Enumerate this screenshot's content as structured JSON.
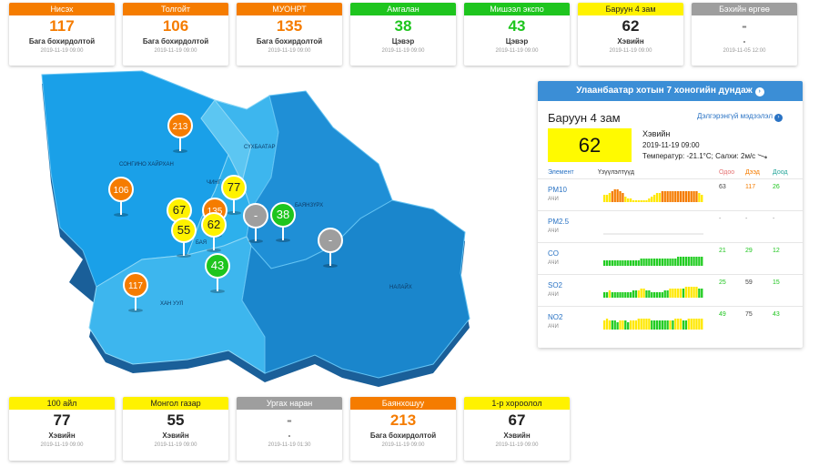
{
  "top_cards": [
    {
      "name": "Нисэх",
      "value": "117",
      "level": "Бага бохирдолтой",
      "time": "2019-11-19 09:00",
      "color": "#f57c00",
      "vcolor": "#f57c00"
    },
    {
      "name": "Толгойт",
      "value": "106",
      "level": "Бага бохирдолтой",
      "time": "2019-11-19 09:00",
      "color": "#f57c00",
      "vcolor": "#f57c00"
    },
    {
      "name": "МУОНРТ",
      "value": "135",
      "level": "Бага бохирдолтой",
      "time": "2019-11-19 09:00",
      "color": "#f57c00",
      "vcolor": "#f57c00"
    },
    {
      "name": "Амгалан",
      "value": "38",
      "level": "Цэвэр",
      "time": "2019-11-19 09:00",
      "color": "#1ec51e",
      "vcolor": "#1ec51e"
    },
    {
      "name": "Мишээл экспо",
      "value": "43",
      "level": "Цэвэр",
      "time": "2019-11-19 09:00",
      "color": "#1ec51e",
      "vcolor": "#1ec51e"
    },
    {
      "name": "Баруун 4 зам",
      "value": "62",
      "level": "Хэвийн",
      "time": "2019-11-19 09:00",
      "color": "#fff200",
      "vcolor": "#222222",
      "dark": true
    },
    {
      "name": "Бэхийн өргөө",
      "value": "-",
      "level": "-",
      "time": "2019-11-05 12:00",
      "color": "#9e9e9e",
      "vcolor": "#888888"
    }
  ],
  "bottom_cards": [
    {
      "name": "100 айл",
      "value": "77",
      "level": "Хэвийн",
      "time": "2019-11-19 09:00",
      "color": "#fff200",
      "vcolor": "#222222",
      "dark": true
    },
    {
      "name": "Монгол газар",
      "value": "55",
      "level": "Хэвийн",
      "time": "2019-11-19 09:00",
      "color": "#fff200",
      "vcolor": "#222222",
      "dark": true
    },
    {
      "name": "Ургах наран",
      "value": "-",
      "level": "-",
      "time": "2019-11-19 01:30",
      "color": "#9e9e9e",
      "vcolor": "#888888"
    },
    {
      "name": "Баянхошуу",
      "value": "213",
      "level": "Бага бохирдолтой",
      "time": "2019-11-19 09:00",
      "color": "#f57c00",
      "vcolor": "#f57c00"
    },
    {
      "name": "1-р хороолол",
      "value": "67",
      "level": "Хэвийн",
      "time": "2019-11-19 09:00",
      "color": "#fff200",
      "vcolor": "#222222",
      "dark": true
    }
  ],
  "districts": [
    {
      "id": "songino",
      "name": "СОНГИНО ХАЙРХАН"
    },
    {
      "id": "sukhbaatar",
      "name": "СҮХБААТАР"
    },
    {
      "id": "chingeltei",
      "name": "ЧИНГ"
    },
    {
      "id": "bayanzurkh",
      "name": "БАЯНЗҮРХ"
    },
    {
      "id": "bayangol",
      "name": "БАЯ"
    },
    {
      "id": "khanuul",
      "name": "ХАН УУЛ"
    },
    {
      "id": "nalaikh",
      "name": "НАЛАЙХ"
    }
  ],
  "markers": [
    {
      "value": "213",
      "color": "#f57c00",
      "text": "#ffffff"
    },
    {
      "value": "106",
      "color": "#f57c00",
      "text": "#ffffff"
    },
    {
      "value": "77",
      "color": "#fff200",
      "text": "#222222"
    },
    {
      "value": "67",
      "color": "#fff200",
      "text": "#222222"
    },
    {
      "value": "135",
      "color": "#f57c00",
      "text": "#ffffff"
    },
    {
      "value": "-",
      "color": "#9e9e9e",
      "text": "#ffffff"
    },
    {
      "value": "38",
      "color": "#1ec51e",
      "text": "#ffffff"
    },
    {
      "value": "55",
      "color": "#fff200",
      "text": "#222222"
    },
    {
      "value": "62",
      "color": "#fff200",
      "text": "#222222"
    },
    {
      "value": "43",
      "color": "#1ec51e",
      "text": "#ffffff"
    },
    {
      "value": "-",
      "color": "#9e9e9e",
      "text": "#ffffff"
    },
    {
      "value": "117",
      "color": "#f57c00",
      "text": "#ffffff"
    }
  ],
  "panel": {
    "title": "Улаанбаатар хотын 7 хоногийн дундаж",
    "station": "Баруун 4 зам",
    "details_link": "Дэлгэрэнгүй мэдээлэл",
    "aqi": "62",
    "aqi_color": "#fffa00",
    "level": "Хэвийн",
    "time": "2019-11-19 09:00",
    "weather": "Температур: -21.1°C; Салхи: 2м/с",
    "col_element": "Элемент",
    "col_index": "Үзүүлэлтүүд",
    "col_now": "Одоо",
    "col_max": "Дээд",
    "col_min": "Доод",
    "rows": [
      {
        "name": "PM10",
        "unit": "АЧИ",
        "now": "63",
        "max": "117",
        "min": "26",
        "now_color": "#444444",
        "max_color": "#f57c00",
        "min_color": "#1ec51e",
        "bars": [
          4,
          4,
          5,
          6,
          7,
          7,
          6,
          5,
          3,
          2,
          2,
          1,
          1,
          1,
          1,
          1,
          1,
          2,
          3,
          4,
          5,
          5,
          6,
          6,
          6,
          6,
          6,
          6,
          6,
          6,
          6,
          6,
          6,
          6,
          6,
          6,
          5,
          4
        ],
        "colors": [
          "y",
          "y",
          "y",
          "o",
          "o",
          "o",
          "o",
          "o",
          "y",
          "y",
          "y",
          "y",
          "y",
          "y",
          "y",
          "y",
          "y",
          "y",
          "y",
          "y",
          "y",
          "y",
          "o",
          "o",
          "o",
          "o",
          "o",
          "o",
          "o",
          "o",
          "o",
          "o",
          "o",
          "o",
          "o",
          "o",
          "y",
          "y"
        ]
      },
      {
        "name": "PM2.5",
        "unit": "АЧИ",
        "now": "-",
        "max": "-",
        "min": "-",
        "now_color": "#888888",
        "max_color": "#888888",
        "min_color": "#888888",
        "bars": [],
        "colors": []
      },
      {
        "name": "CO",
        "unit": "АЧИ",
        "now": "21",
        "max": "29",
        "min": "12",
        "now_color": "#1ec51e",
        "max_color": "#1ec51e",
        "min_color": "#1ec51e",
        "bars": [
          3,
          3,
          3,
          3,
          3,
          3,
          3,
          3,
          3,
          3,
          3,
          3,
          3,
          3,
          4,
          4,
          4,
          4,
          4,
          4,
          4,
          4,
          4,
          4,
          4,
          4,
          4,
          4,
          5,
          5,
          5,
          5,
          5,
          5,
          5,
          5,
          5,
          5
        ],
        "colors": [
          "g",
          "g",
          "g",
          "g",
          "g",
          "g",
          "g",
          "g",
          "g",
          "g",
          "g",
          "g",
          "g",
          "g",
          "g",
          "g",
          "g",
          "g",
          "g",
          "g",
          "g",
          "g",
          "g",
          "g",
          "g",
          "g",
          "g",
          "g",
          "g",
          "g",
          "g",
          "g",
          "g",
          "g",
          "g",
          "g",
          "g",
          "g"
        ]
      },
      {
        "name": "SO2",
        "unit": "АЧИ",
        "now": "25",
        "max": "59",
        "min": "15",
        "now_color": "#1ec51e",
        "max_color": "#444444",
        "min_color": "#1ec51e",
        "bars": [
          3,
          3,
          4,
          3,
          3,
          3,
          3,
          3,
          3,
          3,
          3,
          4,
          4,
          4,
          5,
          5,
          4,
          4,
          3,
          3,
          3,
          3,
          3,
          4,
          4,
          5,
          5,
          5,
          5,
          5,
          5,
          6,
          6,
          6,
          6,
          6,
          5,
          5
        ],
        "colors": [
          "g",
          "g",
          "y",
          "g",
          "g",
          "g",
          "g",
          "g",
          "g",
          "g",
          "g",
          "g",
          "g",
          "y",
          "y",
          "y",
          "g",
          "g",
          "g",
          "g",
          "g",
          "g",
          "g",
          "g",
          "g",
          "y",
          "y",
          "y",
          "y",
          "y",
          "g",
          "y",
          "y",
          "y",
          "y",
          "y",
          "g",
          "g"
        ]
      },
      {
        "name": "NO2",
        "unit": "АЧИ",
        "now": "49",
        "max": "75",
        "min": "43",
        "now_color": "#1ec51e",
        "max_color": "#444444",
        "min_color": "#1ec51e",
        "bars": [
          5,
          6,
          5,
          5,
          5,
          4,
          5,
          5,
          5,
          4,
          5,
          5,
          5,
          6,
          6,
          6,
          6,
          6,
          5,
          5,
          5,
          5,
          5,
          5,
          5,
          5,
          5,
          6,
          6,
          6,
          5,
          5,
          6,
          6,
          6,
          6,
          6,
          6
        ],
        "colors": [
          "y",
          "y",
          "y",
          "g",
          "g",
          "g",
          "y",
          "y",
          "g",
          "g",
          "y",
          "y",
          "y",
          "y",
          "y",
          "y",
          "y",
          "y",
          "g",
          "g",
          "g",
          "g",
          "g",
          "g",
          "g",
          "y",
          "g",
          "y",
          "y",
          "y",
          "g",
          "g",
          "y",
          "y",
          "y",
          "y",
          "y",
          "y"
        ]
      }
    ]
  },
  "bar_colors": {
    "g": "#22cc22",
    "y": "#ffe800",
    "o": "#f57c00"
  }
}
